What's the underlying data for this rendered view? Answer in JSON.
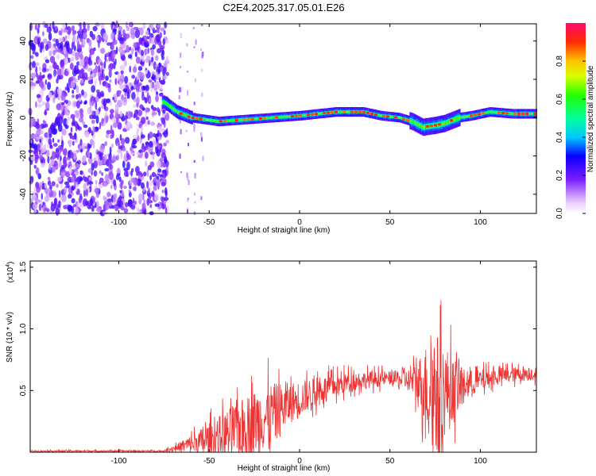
{
  "title": "C2E4.2025.317.05.01.E26",
  "chart_data": [
    {
      "type": "heatmap",
      "name": "spectrogram",
      "xlabel": "Height of straight line (km)",
      "ylabel": "Frequency (Hz)",
      "xlim": [
        -149,
        131
      ],
      "ylim": [
        -50,
        49
      ],
      "xticks": [
        -100,
        -50,
        0,
        50,
        100
      ],
      "yticks": [
        -40,
        -20,
        0,
        20,
        40
      ],
      "colorbar": {
        "label": "Normalized spectral amplitude",
        "range": [
          0.0,
          1.0
        ],
        "ticks": [
          0.0,
          0.2,
          0.4,
          0.6,
          0.8
        ]
      },
      "noise_until_x": -73,
      "ridge": [
        {
          "x": -75,
          "y": 8
        },
        {
          "x": -68,
          "y": 3
        },
        {
          "x": -60,
          "y": 0
        },
        {
          "x": -45,
          "y": -2
        },
        {
          "x": -30,
          "y": -1
        },
        {
          "x": -15,
          "y": 0
        },
        {
          "x": 0,
          "y": 1
        },
        {
          "x": 10,
          "y": 2
        },
        {
          "x": 20,
          "y": 3
        },
        {
          "x": 35,
          "y": 3
        },
        {
          "x": 45,
          "y": 1
        },
        {
          "x": 55,
          "y": 0
        },
        {
          "x": 62,
          "y": -2
        },
        {
          "x": 68,
          "y": -5
        },
        {
          "x": 75,
          "y": -4
        },
        {
          "x": 80,
          "y": -3
        },
        {
          "x": 88,
          "y": 0
        },
        {
          "x": 95,
          "y": 1
        },
        {
          "x": 105,
          "y": 3
        },
        {
          "x": 118,
          "y": 2
        },
        {
          "x": 131,
          "y": 2
        }
      ]
    },
    {
      "type": "line",
      "name": "snr",
      "xlabel": "Height of straight line (km)",
      "ylabel": "SNR (10 * v/v)",
      "y_exponent": "(x10",
      "y_exponent_power": "4",
      "y_exponent_close": ")",
      "xlim": [
        -149,
        131
      ],
      "ylim": [
        0,
        1.55
      ],
      "xticks": [
        -100,
        -50,
        0,
        50,
        100
      ],
      "yticks": [
        0.5,
        1.0,
        1.5
      ],
      "ytick_labels": [
        "0.5",
        "1.0",
        "1.5"
      ],
      "color": "#ee3333",
      "envelope": [
        {
          "x": -149,
          "base": 0.01,
          "amp": 0.01
        },
        {
          "x": -75,
          "base": 0.01,
          "amp": 0.01
        },
        {
          "x": -65,
          "base": 0.05,
          "amp": 0.08
        },
        {
          "x": -50,
          "base": 0.1,
          "amp": 0.25
        },
        {
          "x": -35,
          "base": 0.18,
          "amp": 0.4
        },
        {
          "x": -20,
          "base": 0.28,
          "amp": 0.5
        },
        {
          "x": -5,
          "base": 0.4,
          "amp": 0.3
        },
        {
          "x": 10,
          "base": 0.5,
          "amp": 0.2
        },
        {
          "x": 30,
          "base": 0.58,
          "amp": 0.14
        },
        {
          "x": 50,
          "base": 0.6,
          "amp": 0.1
        },
        {
          "x": 62,
          "base": 0.58,
          "amp": 0.18
        },
        {
          "x": 68,
          "base": 0.55,
          "amp": 0.5
        },
        {
          "x": 75,
          "base": 0.5,
          "amp": 0.9
        },
        {
          "x": 85,
          "base": 0.5,
          "amp": 0.5
        },
        {
          "x": 92,
          "base": 0.55,
          "amp": 0.2
        },
        {
          "x": 110,
          "base": 0.62,
          "amp": 0.12
        },
        {
          "x": 131,
          "base": 0.64,
          "amp": 0.1
        }
      ]
    }
  ]
}
